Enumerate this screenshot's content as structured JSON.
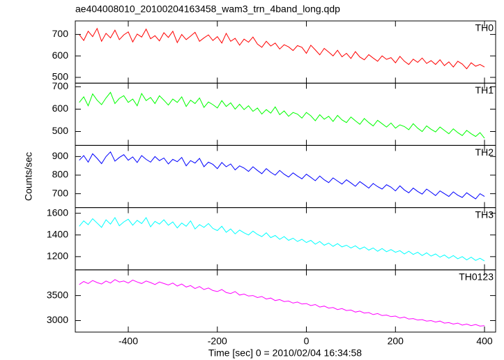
{
  "chart_data": {
    "type": "line",
    "title": "ae404008010_20100204163458_wam3_trn_4band_long.qdp",
    "xlabel": "Time [sec] 0 = 2010/02/04 16:34:58",
    "ylabel": "Counts/sec",
    "xlim": [
      -519,
      425
    ],
    "xticks": [
      -400,
      -200,
      0,
      200,
      400
    ],
    "x": [
      -510,
      -500,
      -490,
      -480,
      -470,
      -460,
      -450,
      -440,
      -430,
      -420,
      -410,
      -400,
      -390,
      -380,
      -370,
      -360,
      -350,
      -340,
      -330,
      -320,
      -310,
      -300,
      -290,
      -280,
      -270,
      -260,
      -250,
      -240,
      -230,
      -220,
      -210,
      -200,
      -190,
      -180,
      -170,
      -160,
      -150,
      -140,
      -130,
      -120,
      -110,
      -100,
      -90,
      -80,
      -70,
      -60,
      -50,
      -40,
      -30,
      -20,
      -10,
      0,
      10,
      20,
      30,
      40,
      50,
      60,
      70,
      80,
      90,
      100,
      110,
      120,
      130,
      140,
      150,
      160,
      170,
      180,
      190,
      200,
      210,
      220,
      230,
      240,
      250,
      260,
      270,
      280,
      290,
      300,
      310,
      320,
      330,
      340,
      350,
      360,
      370,
      380,
      390,
      400
    ],
    "series": [
      {
        "name": "TH0",
        "color": "#ff0000",
        "ylim": [
          473,
          763
        ],
        "yticks": [
          500,
          600,
          700
        ],
        "values": [
          700,
          672,
          715,
          690,
          728,
          668,
          705,
          684,
          720,
          676,
          698,
          712,
          665,
          702,
          688,
          725,
          680,
          694,
          670,
          708,
          686,
          715,
          662,
          700,
          676,
          692,
          710,
          668,
          684,
          698,
          672,
          690,
          660,
          705,
          668,
          682,
          650,
          678,
          664,
          688,
          655,
          640,
          668,
          646,
          660,
          632,
          652,
          642,
          625,
          648,
          640,
          612,
          650,
          628,
          605,
          635,
          618,
          600,
          626,
          596,
          612,
          588,
          620,
          595,
          582,
          606,
          590,
          575,
          600,
          584,
          592,
          568,
          598,
          575,
          560,
          585,
          570,
          590,
          565,
          578,
          560,
          582,
          555,
          572,
          548,
          575,
          562,
          540,
          568,
          552,
          560,
          548
        ]
      },
      {
        "name": "TH1",
        "color": "#00ff00",
        "ylim": [
          438,
          716
        ],
        "yticks": [
          500,
          600,
          700
        ],
        "values": [
          630,
          655,
          615,
          668,
          640,
          620,
          650,
          675,
          625,
          648,
          660,
          630,
          645,
          615,
          670,
          638,
          652,
          625,
          660,
          640,
          618,
          645,
          630,
          655,
          612,
          640,
          625,
          650,
          608,
          632,
          620,
          605,
          638,
          612,
          628,
          600,
          622,
          598,
          615,
          590,
          605,
          578,
          598,
          582,
          610,
          575,
          592,
          568,
          585,
          578,
          560,
          585,
          570,
          548,
          575,
          555,
          568,
          545,
          572,
          552,
          540,
          565,
          548,
          532,
          558,
          540,
          525,
          550,
          535,
          520,
          538,
          515,
          530,
          522,
          508,
          535,
          515,
          500,
          525,
          510,
          498,
          520,
          505,
          490,
          512,
          495,
          482,
          505,
          490,
          478,
          495,
          470
        ]
      },
      {
        "name": "TH2",
        "color": "#0000ff",
        "ylim": [
          625,
          960
        ],
        "yticks": [
          700,
          800,
          900
        ],
        "values": [
          880,
          905,
          870,
          915,
          890,
          862,
          900,
          925,
          875,
          895,
          910,
          880,
          898,
          868,
          905,
          885,
          870,
          900,
          878,
          892,
          860,
          885,
          872,
          895,
          850,
          878,
          865,
          890,
          845,
          870,
          858,
          835,
          868,
          845,
          860,
          828,
          850,
          838,
          820,
          845,
          825,
          808,
          835,
          815,
          800,
          825,
          805,
          790,
          812,
          795,
          780,
          805,
          788,
          770,
          795,
          775,
          760,
          785,
          768,
          752,
          775,
          758,
          740,
          765,
          748,
          730,
          755,
          738,
          725,
          748,
          735,
          715,
          742,
          720,
          705,
          730,
          712,
          698,
          725,
          708,
          690,
          715,
          700,
          685,
          710,
          692,
          680,
          705,
          688,
          672,
          700,
          685
        ]
      },
      {
        "name": "TH3",
        "color": "#00ffff",
        "ylim": [
          1078,
          1652
        ],
        "yticks": [
          1200,
          1400,
          1600
        ],
        "values": [
          1480,
          1530,
          1495,
          1550,
          1510,
          1470,
          1540,
          1500,
          1560,
          1485,
          1520,
          1545,
          1490,
          1535,
          1505,
          1560,
          1475,
          1525,
          1500,
          1540,
          1490,
          1520,
          1465,
          1510,
          1480,
          1530,
          1455,
          1495,
          1470,
          1505,
          1460,
          1440,
          1480,
          1425,
          1455,
          1410,
          1445,
          1420,
          1400,
          1435,
          1405,
          1385,
          1420,
          1375,
          1395,
          1360,
          1385,
          1350,
          1370,
          1340,
          1360,
          1330,
          1350,
          1315,
          1340,
          1305,
          1325,
          1295,
          1320,
          1290,
          1305,
          1280,
          1300,
          1270,
          1290,
          1260,
          1280,
          1250,
          1275,
          1245,
          1265,
          1240,
          1255,
          1225,
          1250,
          1220,
          1240,
          1210,
          1235,
          1205,
          1225,
          1195,
          1215,
          1185,
          1210,
          1180,
          1200,
          1170,
          1195,
          1165,
          1185,
          1160
        ]
      },
      {
        "name": "TH0123",
        "color": "#ff00ff",
        "ylim": [
          2770,
          4013
        ],
        "yticks": [
          3000,
          3500
        ],
        "values": [
          3720,
          3780,
          3740,
          3800,
          3760,
          3730,
          3790,
          3750,
          3820,
          3770,
          3790,
          3750,
          3810,
          3770,
          3740,
          3790,
          3760,
          3720,
          3770,
          3740,
          3710,
          3750,
          3690,
          3730,
          3670,
          3700,
          3640,
          3680,
          3620,
          3650,
          3600,
          3580,
          3620,
          3560,
          3540,
          3580,
          3510,
          3530,
          3490,
          3500,
          3460,
          3480,
          3430,
          3450,
          3400,
          3420,
          3380,
          3390,
          3350,
          3370,
          3330,
          3340,
          3300,
          3320,
          3270,
          3290,
          3250,
          3260,
          3220,
          3240,
          3200,
          3210,
          3170,
          3190,
          3150,
          3160,
          3120,
          3140,
          3100,
          3110,
          3080,
          3090,
          3050,
          3070,
          3030,
          3040,
          3010,
          3020,
          2990,
          3000,
          2970,
          2990,
          2950,
          2960,
          2930,
          2950,
          2910,
          2930,
          2900,
          2920,
          2890,
          2900
        ]
      }
    ]
  }
}
